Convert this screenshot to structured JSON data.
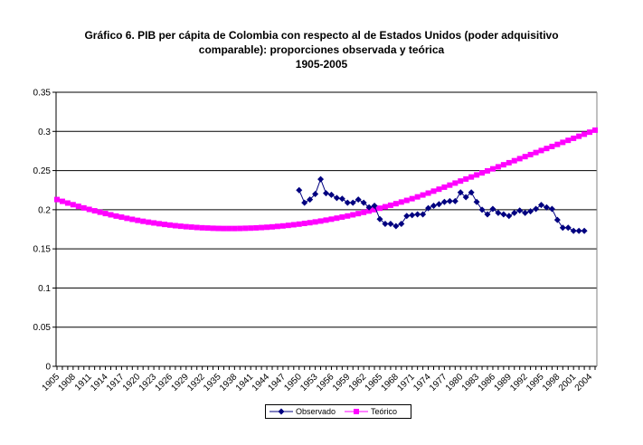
{
  "chart_data": {
    "type": "line",
    "title": [
      "Gráfico 6.  PIB per cápita de Colombia con respecto al de Estados Unidos (poder adquisitivo",
      "comparable): proporciones observada y teórica",
      "1905-2005"
    ],
    "xlabel": "",
    "ylabel": "",
    "x_start": 1905,
    "x_end": 2005,
    "x_tick_labels": [
      "1905",
      "1908",
      "1911",
      "1914",
      "1917",
      "1920",
      "1923",
      "1926",
      "1929",
      "1932",
      "1935",
      "1938",
      "1941",
      "1944",
      "1947",
      "1950",
      "1953",
      "1956",
      "1959",
      "1962",
      "1965",
      "1968",
      "1971",
      "1974",
      "1977",
      "1980",
      "1983",
      "1986",
      "1989",
      "1992",
      "1995",
      "1998",
      "2001",
      "2004"
    ],
    "y_tick_labels": [
      "0",
      "0.05",
      "0.1",
      "0.15",
      "0.2",
      "0.25",
      "0.3",
      "0.35"
    ],
    "ylim": [
      0,
      0.35
    ],
    "grid": "horizontal",
    "legend_position": "bottom",
    "series": [
      {
        "name": "Observado",
        "color": "#000080",
        "marker": "diamond",
        "x_start": 1950,
        "values": [
          0.225,
          0.209,
          0.213,
          0.22,
          0.239,
          0.221,
          0.219,
          0.215,
          0.214,
          0.209,
          0.209,
          0.213,
          0.209,
          0.203,
          0.205,
          0.188,
          0.182,
          0.182,
          0.179,
          0.182,
          0.192,
          0.193,
          0.194,
          0.194,
          0.202,
          0.205,
          0.207,
          0.21,
          0.211,
          0.211,
          0.222,
          0.216,
          0.222,
          0.21,
          0.2,
          0.194,
          0.201,
          0.196,
          0.194,
          0.192,
          0.196,
          0.199,
          0.196,
          0.198,
          0.201,
          0.206,
          0.203,
          0.201,
          0.187,
          0.177,
          0.177,
          0.173,
          0.173,
          0.173
        ]
      },
      {
        "name": "Teórico",
        "color": "#FF00FF",
        "marker": "square",
        "x_start": 1905,
        "values": [
          0.213,
          0.2107,
          0.2085,
          0.2064,
          0.2043,
          0.2023,
          0.2004,
          0.1986,
          0.1968,
          0.1951,
          0.1935,
          0.1919,
          0.1905,
          0.189,
          0.1877,
          0.1864,
          0.1852,
          0.1841,
          0.1831,
          0.1821,
          0.1812,
          0.1804,
          0.1796,
          0.1789,
          0.1783,
          0.1778,
          0.1773,
          0.1769,
          0.1766,
          0.1763,
          0.1761,
          0.176,
          0.176,
          0.176,
          0.1761,
          0.1763,
          0.1765,
          0.1768,
          0.1772,
          0.1776,
          0.1781,
          0.1787,
          0.1793,
          0.18,
          0.1808,
          0.1816,
          0.1825,
          0.1834,
          0.1844,
          0.1855,
          0.1867,
          0.1879,
          0.1892,
          0.1906,
          0.192,
          0.1935,
          0.195,
          0.1966,
          0.1983,
          0.2001,
          0.2019,
          0.2038,
          0.2057,
          0.2077,
          0.2098,
          0.2119,
          0.2141,
          0.2164,
          0.2188,
          0.2212,
          0.2237,
          0.2262,
          0.2288,
          0.2314,
          0.234,
          0.2366,
          0.2392,
          0.2418,
          0.2444,
          0.247,
          0.2496,
          0.2522,
          0.2548,
          0.2574,
          0.26,
          0.2626,
          0.2652,
          0.2678,
          0.2704,
          0.273,
          0.2756,
          0.2782,
          0.2808,
          0.2834,
          0.286,
          0.2886,
          0.2912,
          0.2938,
          0.2964,
          0.299,
          0.3016
        ]
      }
    ]
  }
}
